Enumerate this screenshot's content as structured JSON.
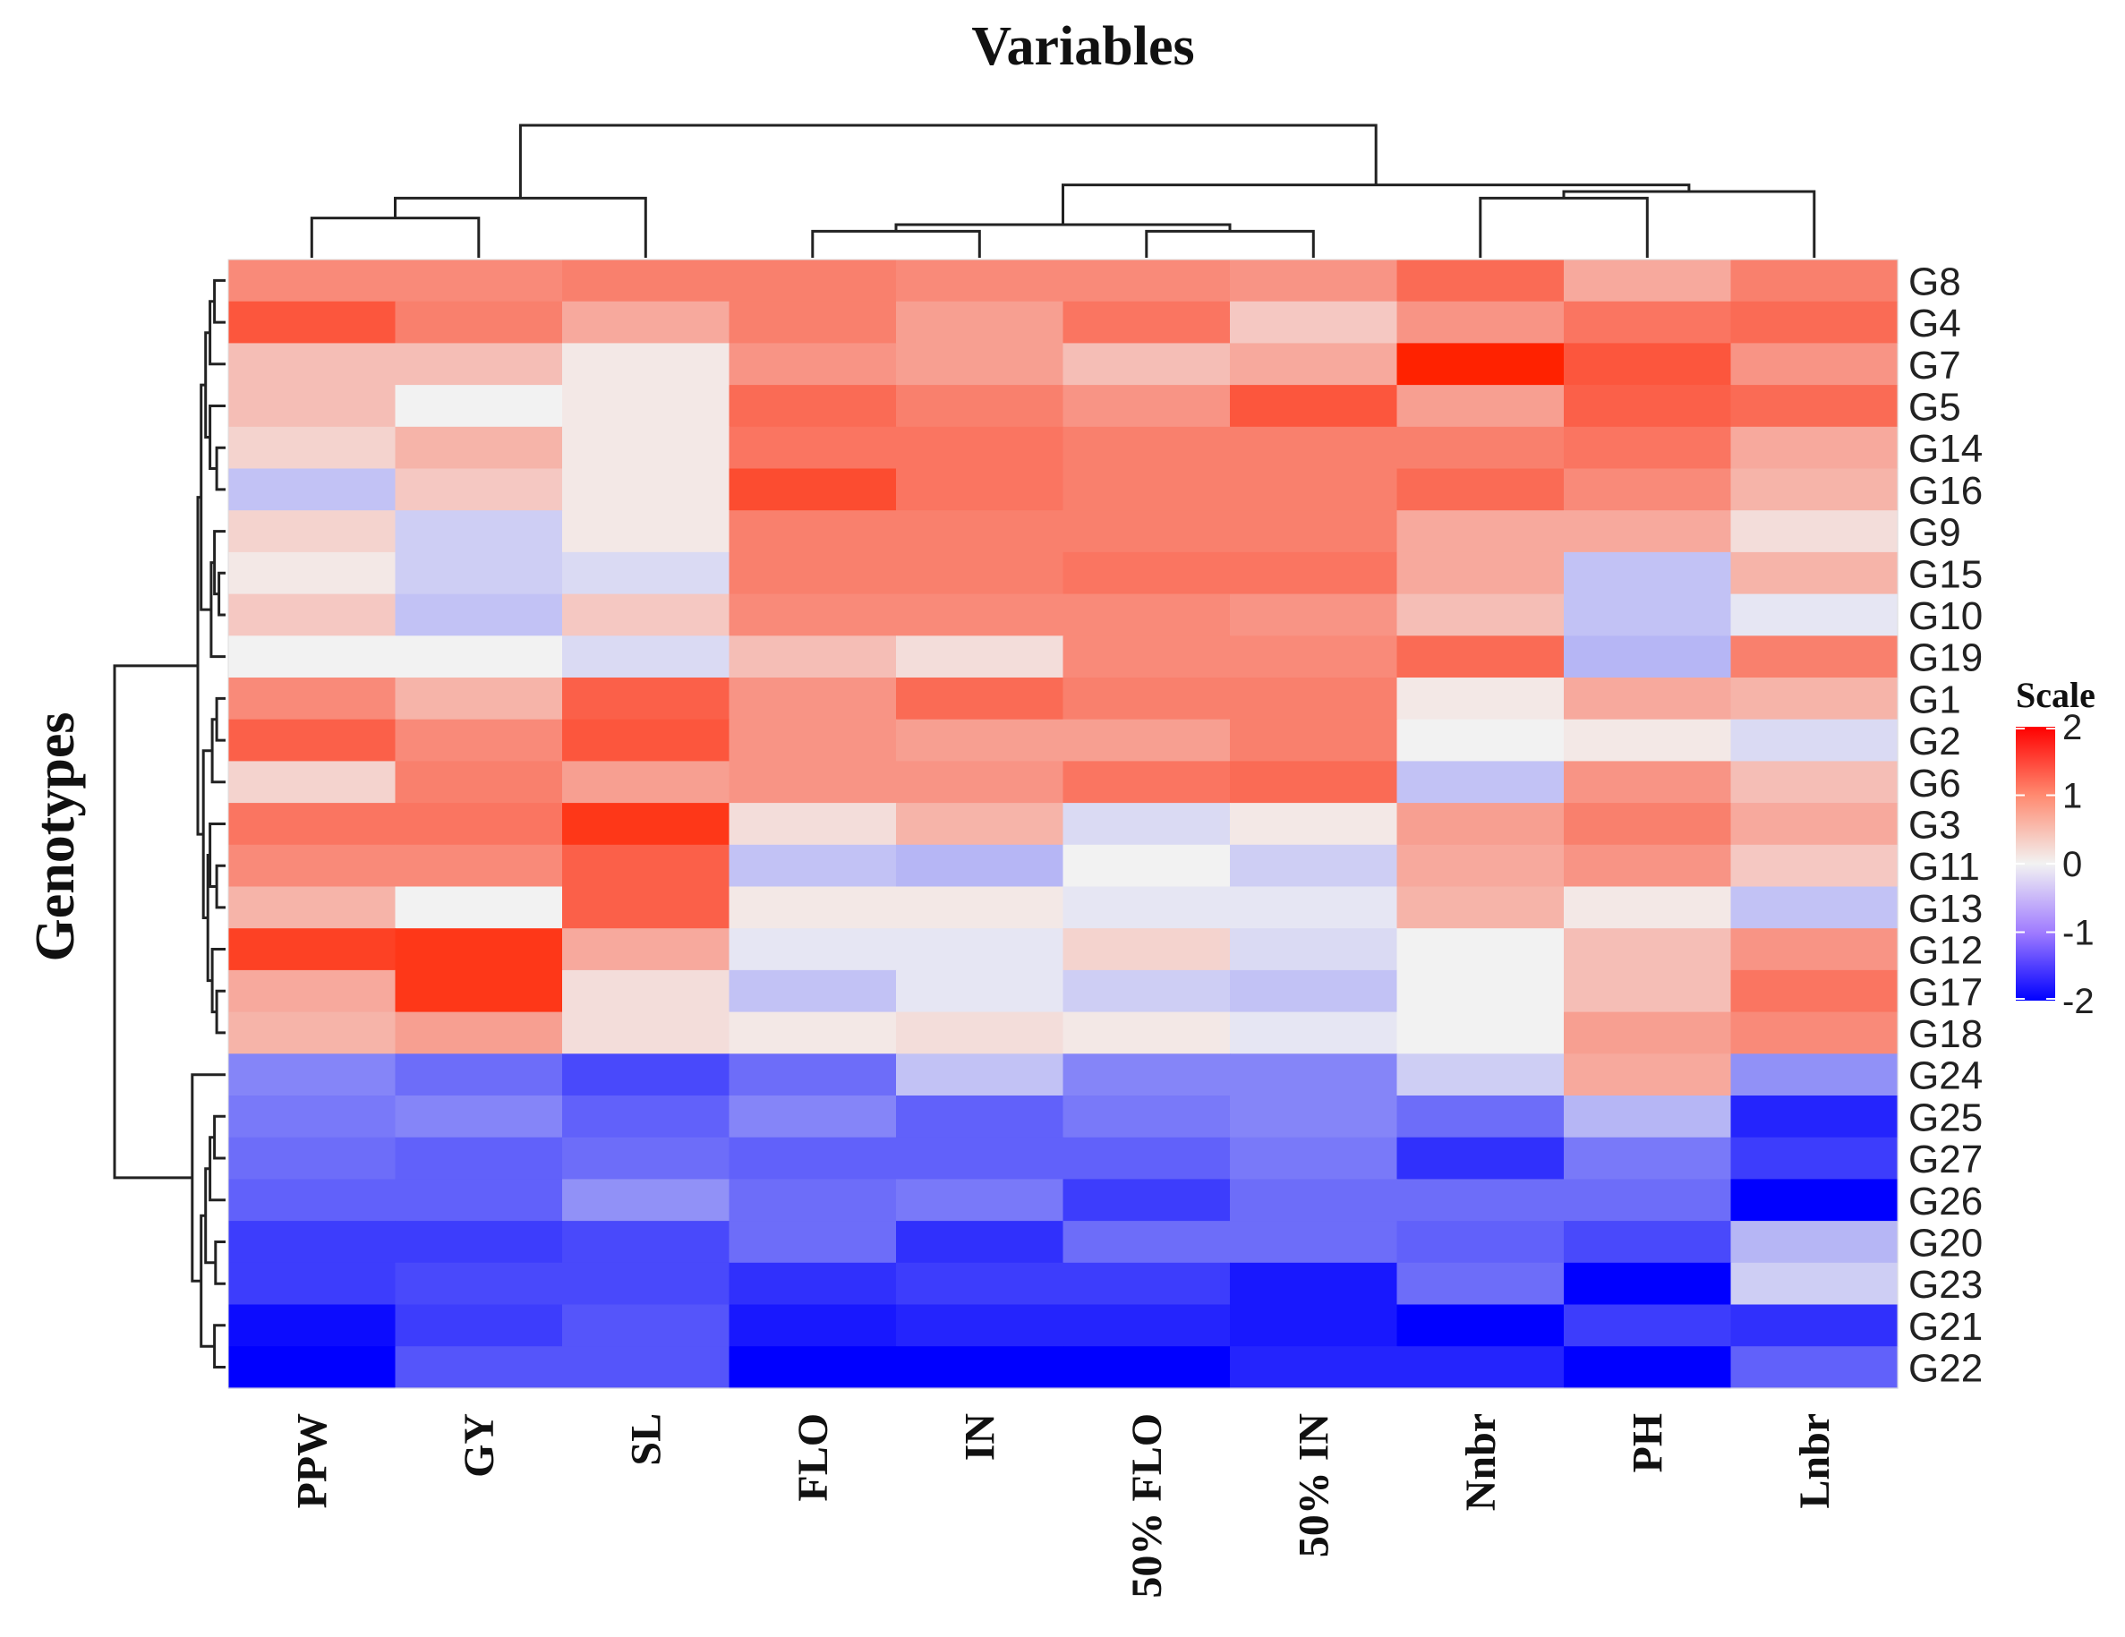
{
  "chart_data": {
    "type": "heatmap",
    "title": "Variables",
    "ylabel": "Genotypes",
    "legend_title": "Scale",
    "legend_placement": "right",
    "legend_ticks": [
      2,
      1,
      0,
      -1,
      -2
    ],
    "color_range": [
      -2,
      2
    ],
    "colors": {
      "low": "#0000ff",
      "mid": "#f2f2f2",
      "high": "#ff2200"
    },
    "columns": [
      "PPW",
      "GY",
      "SL",
      "FLO",
      "IN",
      "50% FLO",
      "50% IN",
      "Nnbr",
      "PH",
      "Lnbr"
    ],
    "rows": [
      "G8",
      "G4",
      "G7",
      "G5",
      "G14",
      "G16",
      "G9",
      "G15",
      "G10",
      "G19",
      "G1",
      "G2",
      "G6",
      "G3",
      "G11",
      "G13",
      "G12",
      "G17",
      "G18",
      "G24",
      "G25",
      "G27",
      "G26",
      "G20",
      "G23",
      "G21",
      "G22"
    ],
    "values": [
      [
        1.0,
        1.0,
        1.1,
        1.1,
        1.0,
        1.0,
        0.9,
        1.3,
        0.7,
        1.1
      ],
      [
        1.5,
        1.1,
        0.7,
        1.1,
        0.8,
        1.2,
        0.4,
        0.9,
        1.2,
        1.3
      ],
      [
        0.5,
        0.5,
        0.1,
        0.9,
        0.8,
        0.5,
        0.7,
        2.0,
        1.5,
        0.9
      ],
      [
        0.5,
        0.0,
        0.1,
        1.3,
        1.1,
        0.9,
        1.5,
        0.8,
        1.4,
        1.3
      ],
      [
        0.3,
        0.6,
        0.1,
        1.2,
        1.2,
        1.1,
        1.1,
        1.1,
        1.2,
        0.7
      ],
      [
        -0.4,
        0.4,
        0.1,
        1.6,
        1.2,
        1.1,
        1.1,
        1.3,
        1.0,
        0.6
      ],
      [
        0.3,
        -0.3,
        0.1,
        1.1,
        1.1,
        1.1,
        1.1,
        0.7,
        0.7,
        0.2
      ],
      [
        0.1,
        -0.3,
        -0.2,
        1.1,
        1.1,
        1.2,
        1.2,
        0.7,
        -0.4,
        0.6
      ],
      [
        0.4,
        -0.4,
        0.4,
        1.0,
        1.0,
        1.0,
        0.9,
        0.5,
        -0.4,
        -0.1
      ],
      [
        0.0,
        0.0,
        -0.2,
        0.5,
        0.2,
        1.0,
        1.0,
        1.3,
        -0.5,
        1.1
      ],
      [
        1.0,
        0.6,
        1.4,
        0.9,
        1.3,
        1.1,
        1.1,
        0.1,
        0.7,
        0.6
      ],
      [
        1.4,
        1.0,
        1.5,
        0.9,
        0.8,
        0.8,
        1.1,
        0.0,
        0.1,
        -0.2
      ],
      [
        0.3,
        1.1,
        0.8,
        0.9,
        0.9,
        1.2,
        1.3,
        -0.4,
        0.9,
        0.5
      ],
      [
        1.2,
        1.2,
        1.8,
        0.2,
        0.6,
        -0.2,
        0.1,
        0.8,
        1.1,
        0.7
      ],
      [
        1.0,
        1.0,
        1.4,
        -0.4,
        -0.5,
        0.0,
        -0.3,
        0.7,
        0.9,
        0.4
      ],
      [
        0.6,
        0.0,
        1.4,
        0.1,
        0.1,
        -0.1,
        -0.1,
        0.6,
        0.1,
        -0.4
      ],
      [
        1.7,
        1.8,
        0.7,
        -0.1,
        -0.1,
        0.3,
        -0.2,
        0.0,
        0.5,
        0.9
      ],
      [
        0.7,
        1.8,
        0.2,
        -0.4,
        -0.1,
        -0.3,
        -0.4,
        0.0,
        0.5,
        1.2
      ],
      [
        0.6,
        0.8,
        0.2,
        0.1,
        0.2,
        0.1,
        -0.1,
        0.0,
        0.8,
        1.0
      ],
      [
        -0.9,
        -1.1,
        -1.4,
        -1.1,
        -0.4,
        -0.9,
        -0.9,
        -0.3,
        0.7,
        -0.8
      ],
      [
        -1.0,
        -0.9,
        -1.2,
        -0.9,
        -1.2,
        -1.0,
        -0.9,
        -1.1,
        -0.5,
        -1.7
      ],
      [
        -1.1,
        -1.2,
        -1.1,
        -1.2,
        -1.2,
        -1.2,
        -1.0,
        -1.6,
        -1.0,
        -1.5
      ],
      [
        -1.2,
        -1.2,
        -0.8,
        -1.1,
        -1.0,
        -1.5,
        -1.1,
        -1.1,
        -1.1,
        -2.2
      ],
      [
        -1.5,
        -1.5,
        -1.4,
        -1.1,
        -1.6,
        -1.1,
        -1.1,
        -1.2,
        -1.4,
        -0.5
      ],
      [
        -1.5,
        -1.4,
        -1.4,
        -1.6,
        -1.5,
        -1.5,
        -1.8,
        -1.1,
        -2.0,
        -0.3
      ],
      [
        -1.9,
        -1.5,
        -1.3,
        -1.8,
        -1.7,
        -1.7,
        -1.8,
        -2.2,
        -1.5,
        -1.6
      ],
      [
        -2.0,
        -1.3,
        -1.3,
        -2.0,
        -2.2,
        -2.0,
        -1.7,
        -1.7,
        -2.1,
        -1.2
      ]
    ]
  }
}
